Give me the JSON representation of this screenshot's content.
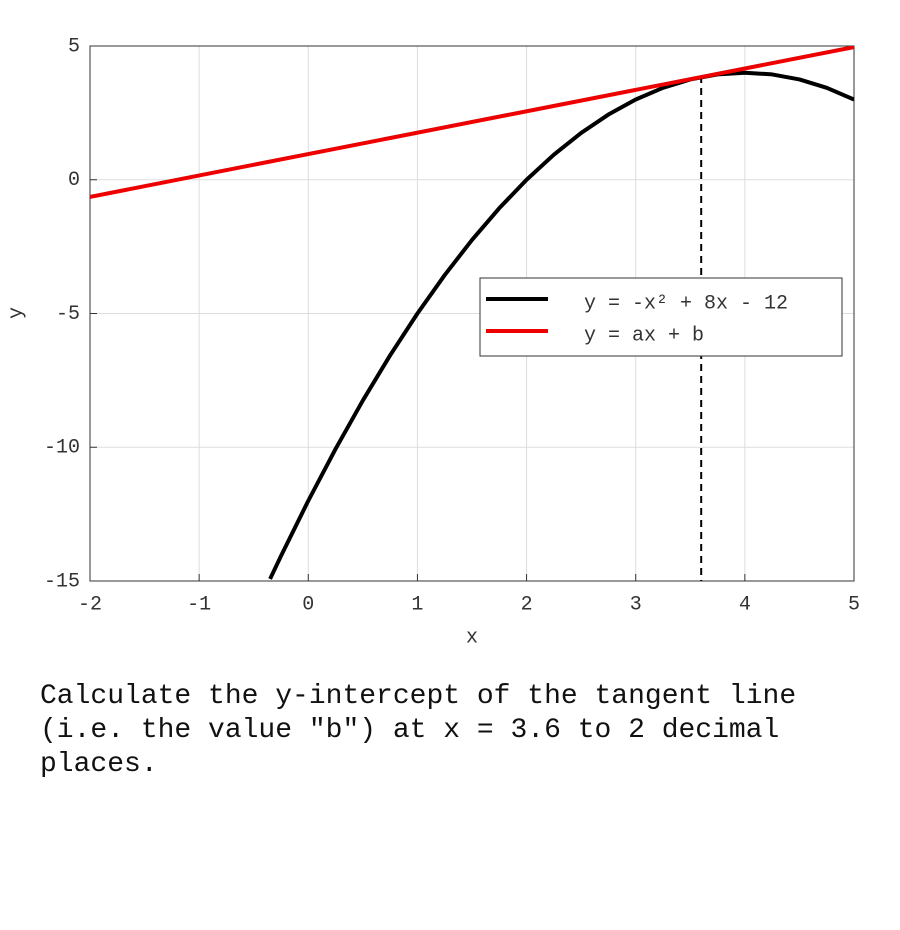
{
  "chart_data": {
    "type": "line",
    "x_label": "x",
    "y_label": "y",
    "xlim": [
      -2,
      5
    ],
    "ylim": [
      -15,
      5
    ],
    "xticks": [
      -2,
      -1,
      0,
      1,
      2,
      3,
      4,
      5
    ],
    "yticks": [
      -15,
      -10,
      -5,
      0,
      5
    ],
    "grid": true,
    "legend": "right",
    "marker_x": 3.6,
    "series": [
      {
        "name": "y = -x² + 8x - 12",
        "color": "#000000",
        "x": [
          -0.35,
          -0.25,
          0,
          0.25,
          0.5,
          0.75,
          1,
          1.25,
          1.5,
          1.75,
          2,
          2.25,
          2.5,
          2.75,
          3,
          3.25,
          3.5,
          3.75,
          4,
          4.25,
          4.5,
          4.75,
          5
        ],
        "values": [
          -14.9225,
          -14.0625,
          -12,
          -10.0625,
          -8.25,
          -6.5625,
          -5,
          -3.5625,
          -2.25,
          -1.0625,
          0,
          0.9375,
          1.75,
          2.4375,
          3,
          3.4375,
          3.75,
          3.9375,
          4,
          3.9375,
          3.75,
          3.4375,
          3
        ]
      },
      {
        "name": "y = ax + b",
        "color": "#ee0000",
        "x": [
          -2,
          5
        ],
        "values": [
          -0.64,
          4.96
        ]
      }
    ]
  },
  "question": "Calculate the y-intercept of the tangent line (i.e. the value \"b\") at x = 3.6 to 2 decimal places."
}
